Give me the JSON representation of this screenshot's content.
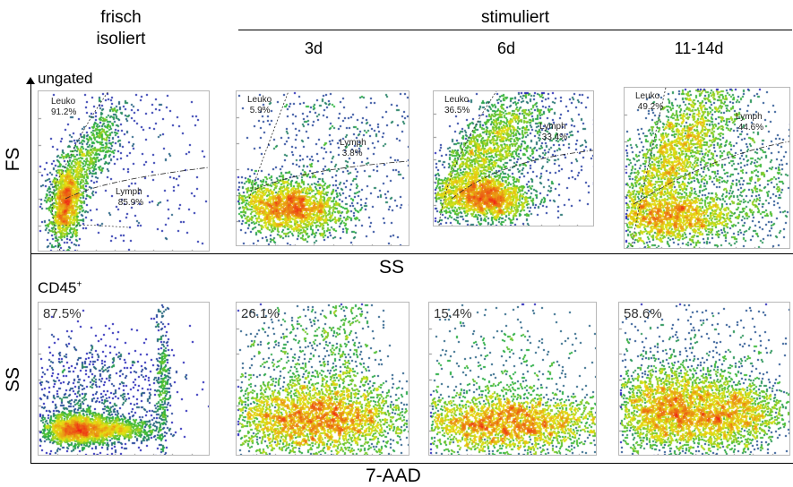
{
  "headers": {
    "fresh_line1": "frisch",
    "fresh_line2": "isoliert",
    "stimulated": "stimuliert",
    "days": [
      "3d",
      "6d",
      "11-14d"
    ]
  },
  "axes": {
    "top_y": "FS",
    "top_x": "SS",
    "bottom_y": "SS",
    "bottom_x": "7-AAD"
  },
  "rows": {
    "top_gate": "ungated",
    "bottom_gate": "CD45",
    "bottom_gate_sup": "+"
  },
  "chart_data": [
    {
      "type": "scatter",
      "title": "",
      "xlabel": "SS",
      "ylabel": "FS",
      "note": "ungated",
      "panels": [
        {
          "column": "frisch isoliert",
          "gates": [
            {
              "name": "Leuko",
              "value": "91.2%"
            },
            {
              "name": "Lymph",
              "value": "85.9%"
            }
          ]
        },
        {
          "column": "3d",
          "gates": [
            {
              "name": "Leuko",
              "value": "5.9%"
            },
            {
              "name": "Lymph",
              "value": "3.8%"
            }
          ]
        },
        {
          "column": "6d",
          "gates": [
            {
              "name": "Leuko",
              "value": "36.5%"
            },
            {
              "name": "Lymph",
              "value": "33.4%"
            }
          ]
        },
        {
          "column": "11-14d",
          "gates": [
            {
              "name": "Leuko",
              "value": "49.2%"
            },
            {
              "name": "Lymph",
              "value": "44.6%"
            }
          ]
        }
      ]
    },
    {
      "type": "scatter",
      "title": "",
      "xlabel": "7-AAD",
      "ylabel": "SS",
      "note": "CD45+",
      "panels": [
        {
          "column": "frisch isoliert",
          "value": "87.5%"
        },
        {
          "column": "3d",
          "value": "26.1%"
        },
        {
          "column": "6d",
          "value": "15.4%"
        },
        {
          "column": "11-14d",
          "value": "58.6%"
        }
      ]
    }
  ],
  "colors": {
    "density_low": "#1f1fb4",
    "density_mid": "#2fb84a",
    "density_high_mid": "#e6e61a",
    "density_high": "#e8201a"
  }
}
